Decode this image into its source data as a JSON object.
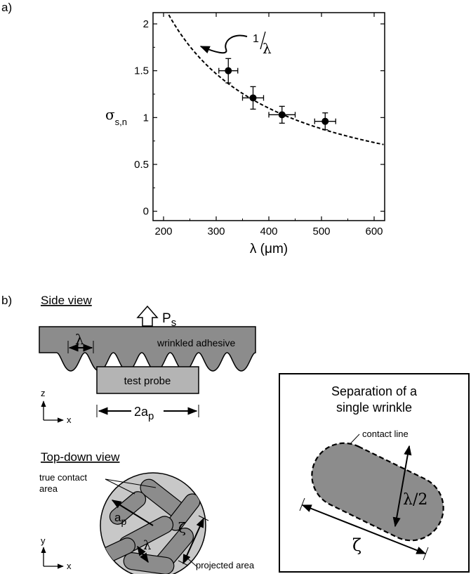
{
  "panel_a": {
    "label": "a)",
    "chart_data": {
      "type": "scatter",
      "xlabel": "λ (μm)",
      "ylabel_main": "σ",
      "ylabel_sub": "s,n",
      "xlim": [
        180,
        620
      ],
      "ylim": [
        -0.1,
        2.12
      ],
      "xticks": [
        "200",
        "300",
        "400",
        "500",
        "600"
      ],
      "yticks": [
        "0",
        "0.5",
        "1",
        "1.5",
        "2"
      ],
      "xtick_values": [
        200,
        300,
        400,
        500,
        600
      ],
      "ytick_values": [
        0,
        0.5,
        1,
        1.5,
        2
      ],
      "points": [
        {
          "x": 323,
          "y": 1.5,
          "xerr": 18,
          "yerr": 0.13
        },
        {
          "x": 370,
          "y": 1.21,
          "xerr": 20,
          "yerr": 0.12
        },
        {
          "x": 425,
          "y": 1.03,
          "xerr": 25,
          "yerr": 0.09
        },
        {
          "x": 507,
          "y": 0.96,
          "xerr": 20,
          "yerr": 0.09
        }
      ],
      "fit_curve": {
        "style": "dashed",
        "constant": 440
      },
      "annotation": {
        "numerator": "1",
        "denominator": "λ"
      }
    }
  },
  "panel_b": {
    "label": "b)",
    "side_view": {
      "title": "Side view",
      "force_label": "P",
      "force_sub": "s",
      "adhesive_label": "wrinkled adhesive",
      "lambda_label": "λ",
      "probe_label": "test probe",
      "width_label": "2a",
      "width_sub": "p",
      "axis_z": "z",
      "axis_x": "x"
    },
    "top_view": {
      "title": "Top-down view",
      "true_contact_line1": "true contact",
      "true_contact_line2": "area",
      "radius_label": "a",
      "radius_sub": "p",
      "lambda_label": "λ",
      "zeta_label": "ζ",
      "projected_label": "projected area",
      "axis_y": "y",
      "axis_x": "x"
    },
    "inset": {
      "title_line1": "Separation of a",
      "title_line2": "single wrinkle",
      "contact_line_label": "contact line",
      "half_lambda_label": "λ/2",
      "zeta_label": "ζ"
    },
    "colors": {
      "adhesive_fill": "#8c8c8c",
      "probe_fill": "#b4b4b4",
      "circle_fill": "#c8c8c8",
      "contact_fill": "#8c8c8c"
    }
  }
}
